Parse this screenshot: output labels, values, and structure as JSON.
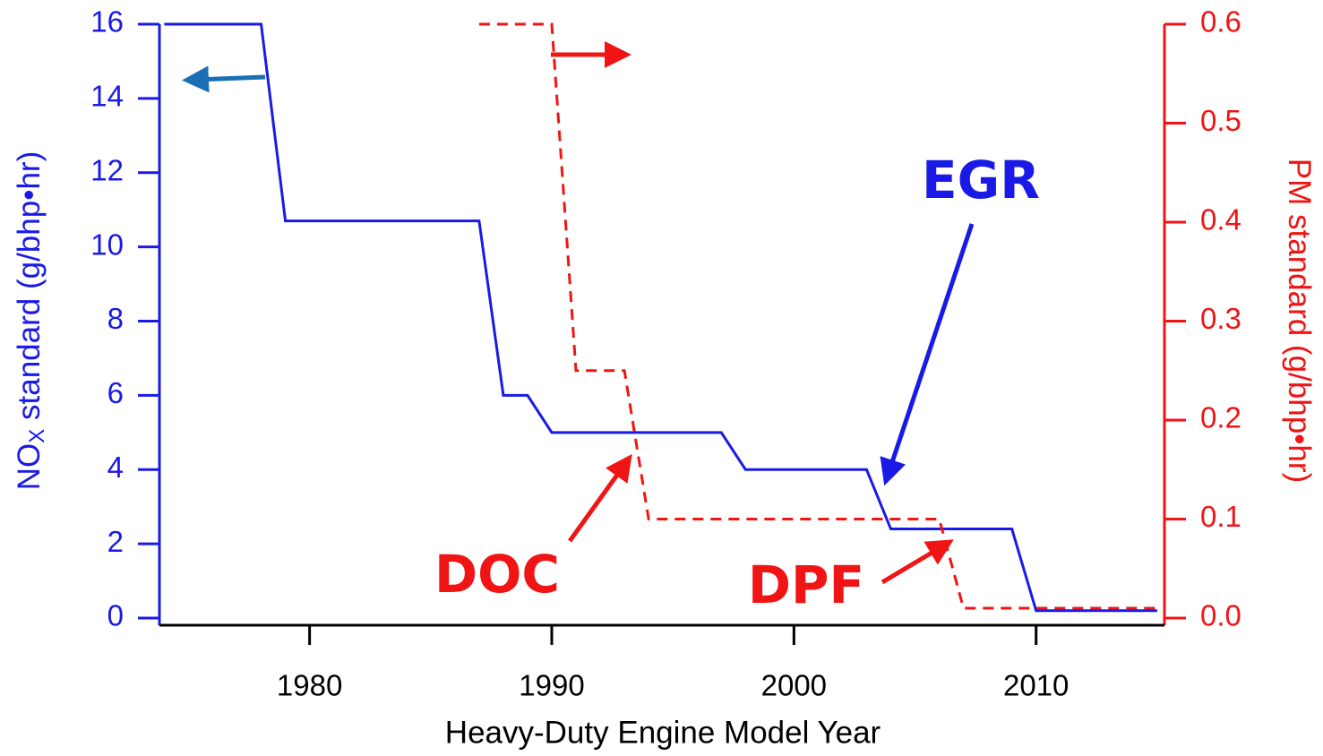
{
  "chart_data": {
    "type": "line",
    "xlabel": "Heavy-Duty Engine Model Year",
    "ylabel": {
      "main": "NO",
      "sub": "X",
      "rest": " standard (g/bhp•hr)"
    },
    "y2label": "PM standard (g/bhp•hr)",
    "xlim": [
      1973.8,
      2015.3
    ],
    "xticks": [
      1980,
      1990,
      2000,
      2010
    ],
    "ylim": [
      0,
      16
    ],
    "yticks": [
      0,
      2,
      4,
      6,
      8,
      10,
      12,
      14,
      16
    ],
    "y2lim": [
      0,
      0.6
    ],
    "y2ticks": [
      {
        "value": 0,
        "label": "0.0"
      },
      0.1,
      0.2,
      0.3,
      0.4,
      0.5,
      0.6
    ],
    "series": [
      {
        "color": "#1a1ae6",
        "x": [
          1974,
          1978,
          1979,
          1987,
          1988,
          1989,
          1990,
          1997,
          1998,
          2003,
          2004,
          2009,
          2010,
          2015
        ],
        "values": [
          16,
          16,
          10.7,
          10.7,
          6,
          6,
          5,
          5,
          4,
          4,
          2.4,
          2.4,
          0.2,
          0.2
        ]
      },
      {
        "color": "#f01414",
        "axis": "y2",
        "dashed": true,
        "x": [
          1987,
          1990,
          1991,
          1993,
          1994,
          2006,
          2007,
          2015
        ],
        "values": [
          0.6,
          0.6,
          0.25,
          0.25,
          0.1,
          0.1,
          0.01,
          0.01
        ]
      }
    ],
    "annotations": [
      "EGR",
      "DOC",
      "DPF"
    ]
  }
}
